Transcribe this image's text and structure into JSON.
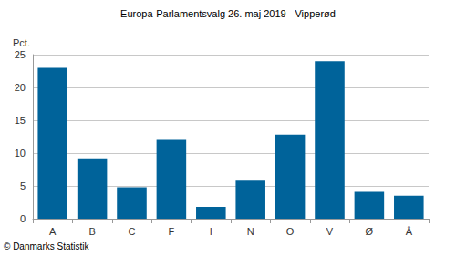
{
  "chart_data": {
    "type": "bar",
    "title": "Europa-Parlamentsvalg 26. maj 2019 - Vipperød",
    "y_label": "Pct.",
    "source": "© Danmarks Statistik",
    "categories": [
      "A",
      "B",
      "C",
      "F",
      "I",
      "N",
      "O",
      "V",
      "Ø",
      "Å"
    ],
    "values": [
      23.0,
      9.2,
      4.8,
      12.0,
      1.8,
      5.8,
      12.8,
      24.0,
      4.1,
      3.5
    ],
    "color": "#00639a",
    "ylim": [
      0,
      25
    ],
    "yticks": [
      0,
      5,
      10,
      15,
      20,
      25
    ],
    "grid": true
  }
}
